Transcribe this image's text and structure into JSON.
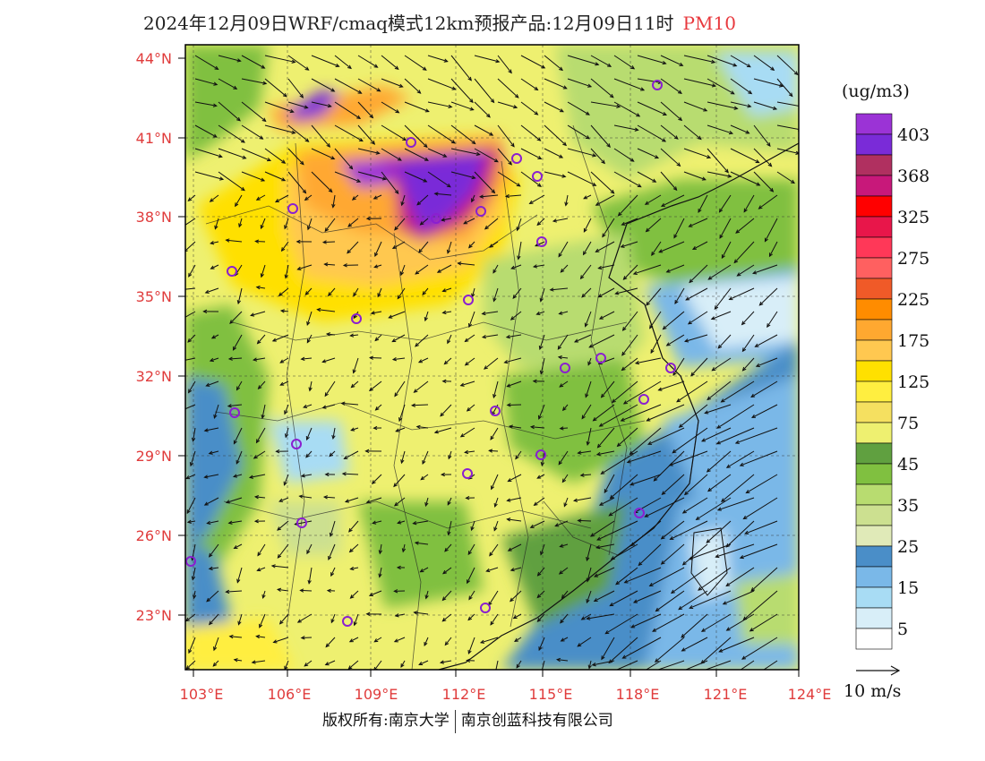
{
  "title": {
    "main": "2024年12月09日WRF/cmaq模式12km预报产品:12月09日11时",
    "pollutant": "PM10"
  },
  "axes": {
    "lat_ticks": [
      "44°N",
      "41°N",
      "38°N",
      "35°N",
      "32°N",
      "29°N",
      "26°N",
      "23°N"
    ],
    "lon_ticks": [
      "103°E",
      "106°E",
      "109°E",
      "112°E",
      "115°E",
      "118°E",
      "121°E",
      "124°E"
    ]
  },
  "legend": {
    "unit": "(ug/m3)",
    "levels": [
      {
        "label": "403",
        "color": "#9b33d6"
      },
      {
        "label": "",
        "color": "#7a2bd8"
      },
      {
        "label": "368",
        "color": "#b03060"
      },
      {
        "label": "",
        "color": "#c8187a"
      },
      {
        "label": "325",
        "color": "#ff0000"
      },
      {
        "label": "",
        "color": "#e8164a"
      },
      {
        "label": "275",
        "color": "#ff3858"
      },
      {
        "label": "",
        "color": "#ff6060"
      },
      {
        "label": "225",
        "color": "#f05a28"
      },
      {
        "label": "",
        "color": "#ff8c00"
      },
      {
        "label": "175",
        "color": "#ffa830"
      },
      {
        "label": "",
        "color": "#ffc850"
      },
      {
        "label": "125",
        "color": "#ffe000"
      },
      {
        "label": "",
        "color": "#ffee40"
      },
      {
        "label": "75",
        "color": "#f5e060"
      },
      {
        "label": "",
        "color": "#eef070"
      },
      {
        "label": "45",
        "color": "#60a040"
      },
      {
        "label": "",
        "color": "#80c040"
      },
      {
        "label": "35",
        "color": "#b8dc70"
      },
      {
        "label": "",
        "color": "#cce090"
      },
      {
        "label": "25",
        "color": "#e0eab8"
      },
      {
        "label": "",
        "color": "#4a8ec8"
      },
      {
        "label": "15",
        "color": "#7ab8e8"
      },
      {
        "label": "",
        "color": "#a8dcf4"
      },
      {
        "label": "5",
        "color": "#d8eef8"
      },
      {
        "label": "",
        "color": "#ffffff"
      }
    ],
    "wind_scale_label": "10 m/s"
  },
  "footer": {
    "copyright_label": "版权所有:南京大学",
    "company_label": "南京创蓝科技有限公司"
  },
  "map": {
    "concentration_field": [
      {
        "region": "inner-mongolia-band",
        "level": "403"
      },
      {
        "region": "shanxi-hebei-core",
        "level": "403"
      },
      {
        "region": "north-china-plain",
        "level": "125"
      },
      {
        "region": "central-china",
        "level": "75"
      },
      {
        "region": "south-china",
        "level": "75"
      },
      {
        "region": "east-china-coast",
        "level": "35"
      },
      {
        "region": "yellow-sea",
        "level": "15"
      },
      {
        "region": "east-china-sea",
        "level": "15"
      }
    ]
  }
}
